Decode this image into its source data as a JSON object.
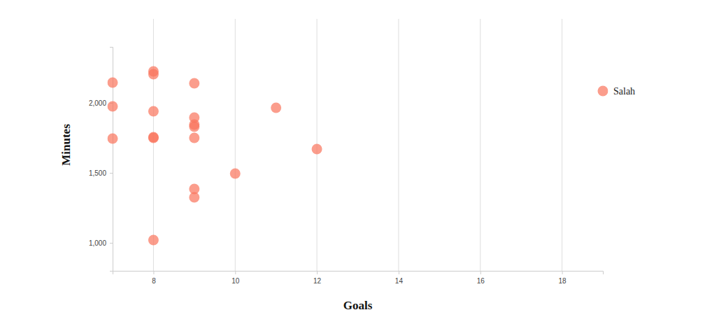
{
  "chart_data": {
    "type": "scatter",
    "x_label": "Goals",
    "y_label": "Minutes",
    "x": [
      7,
      7,
      7,
      8,
      8,
      8,
      8,
      8,
      8,
      9,
      9,
      9,
      9,
      9,
      9,
      9,
      10,
      11,
      12,
      19
    ],
    "values": [
      2145,
      1975,
      1745,
      2225,
      2205,
      1940,
      1755,
      1750,
      1020,
      2140,
      1895,
      1845,
      1830,
      1750,
      1385,
      1325,
      1495,
      1965,
      1670,
      2085
    ],
    "color": "#f9735b",
    "marker": "circle",
    "xlim": [
      7,
      19
    ],
    "xticks": [
      8,
      10,
      12,
      14,
      16,
      18
    ],
    "ylim": [
      800,
      2400
    ],
    "yticks": [
      {
        "value": 1000,
        "label": "1,000"
      },
      {
        "value": 1500,
        "label": "1,500"
      },
      {
        "value": 2000,
        "label": "2,000"
      }
    ],
    "grid": true,
    "annotations": [
      {
        "text": "Salah",
        "x": 19,
        "y": 2085
      }
    ]
  }
}
